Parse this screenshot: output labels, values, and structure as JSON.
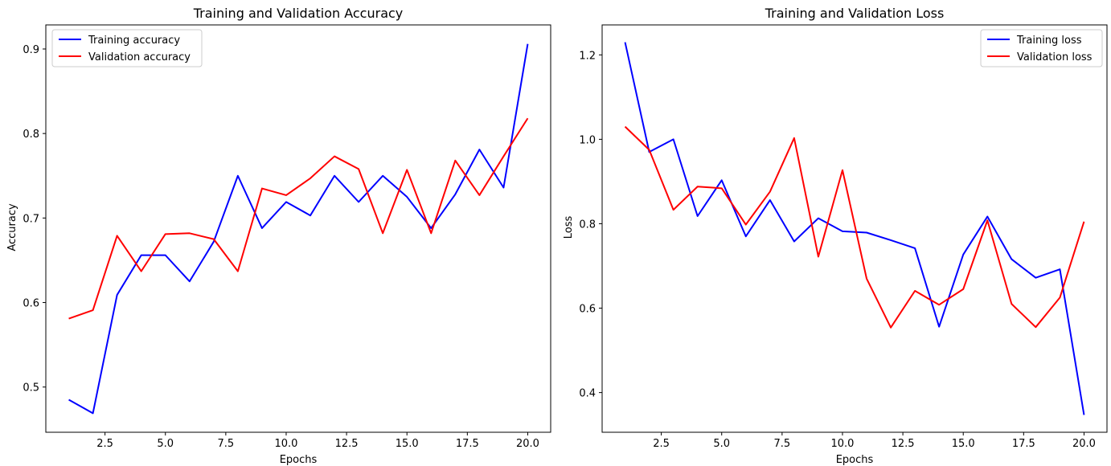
{
  "chart_data": [
    {
      "type": "line",
      "title": "Training and Validation Accuracy",
      "xlabel": "Epochs",
      "ylabel": "Accuracy",
      "xlim": [
        0.05,
        20.95
      ],
      "ylim": [
        0.4465,
        0.9285
      ],
      "xticks": [
        2.5,
        5.0,
        7.5,
        10.0,
        12.5,
        15.0,
        17.5,
        20.0
      ],
      "xtick_labels": [
        "2.5",
        "5.0",
        "7.5",
        "10.0",
        "12.5",
        "15.0",
        "17.5",
        "20.0"
      ],
      "yticks": [
        0.5,
        0.6,
        0.7,
        0.8,
        0.9
      ],
      "ytick_labels": [
        "0.5",
        "0.6",
        "0.7",
        "0.8",
        "0.9"
      ],
      "grid": false,
      "legend_position": "top-left",
      "x": [
        1,
        2,
        3,
        4,
        5,
        6,
        7,
        8,
        9,
        10,
        11,
        12,
        13,
        14,
        15,
        16,
        17,
        18,
        19,
        20
      ],
      "series": [
        {
          "name": "Training accuracy",
          "color": "#0000ff",
          "values": [
            0.485,
            0.469,
            0.609,
            0.656,
            0.656,
            0.625,
            0.672,
            0.75,
            0.688,
            0.719,
            0.703,
            0.75,
            0.719,
            0.75,
            0.725,
            0.688,
            0.728,
            0.781,
            0.736,
            0.906
          ]
        },
        {
          "name": "Validation accuracy",
          "color": "#ff0000",
          "values": [
            0.581,
            0.591,
            0.679,
            0.637,
            0.681,
            0.682,
            0.675,
            0.637,
            0.735,
            0.727,
            0.747,
            0.773,
            0.758,
            0.682,
            0.757,
            0.682,
            0.768,
            0.727,
            0.773,
            0.818
          ]
        }
      ]
    },
    {
      "type": "line",
      "title": "Training and Validation Loss",
      "xlabel": "Epochs",
      "ylabel": "Loss",
      "xlim": [
        0.05,
        20.95
      ],
      "ylim": [
        0.306,
        1.271
      ],
      "xticks": [
        2.5,
        5.0,
        7.5,
        10.0,
        12.5,
        15.0,
        17.5,
        20.0
      ],
      "xtick_labels": [
        "2.5",
        "5.0",
        "7.5",
        "10.0",
        "12.5",
        "15.0",
        "17.5",
        "20.0"
      ],
      "yticks": [
        0.4,
        0.6,
        0.8,
        1.0,
        1.2
      ],
      "ytick_labels": [
        "0.4",
        "0.6",
        "0.8",
        "1.0",
        "1.2"
      ],
      "grid": false,
      "legend_position": "top-right",
      "x": [
        1,
        2,
        3,
        4,
        5,
        6,
        7,
        8,
        9,
        10,
        11,
        12,
        13,
        14,
        15,
        16,
        17,
        18,
        19,
        20
      ],
      "series": [
        {
          "name": "Training loss",
          "color": "#0000ff",
          "values": [
            1.23,
            0.97,
            1.0,
            0.818,
            0.903,
            0.77,
            0.856,
            0.758,
            0.813,
            0.782,
            0.779,
            0.761,
            0.742,
            0.556,
            0.727,
            0.817,
            0.716,
            0.672,
            0.692,
            0.347
          ]
        },
        {
          "name": "Validation loss",
          "color": "#ff0000",
          "values": [
            1.03,
            0.975,
            0.833,
            0.888,
            0.884,
            0.798,
            0.876,
            1.003,
            0.722,
            0.927,
            0.67,
            0.554,
            0.641,
            0.608,
            0.645,
            0.808,
            0.61,
            0.555,
            0.625,
            0.805
          ]
        }
      ]
    }
  ]
}
